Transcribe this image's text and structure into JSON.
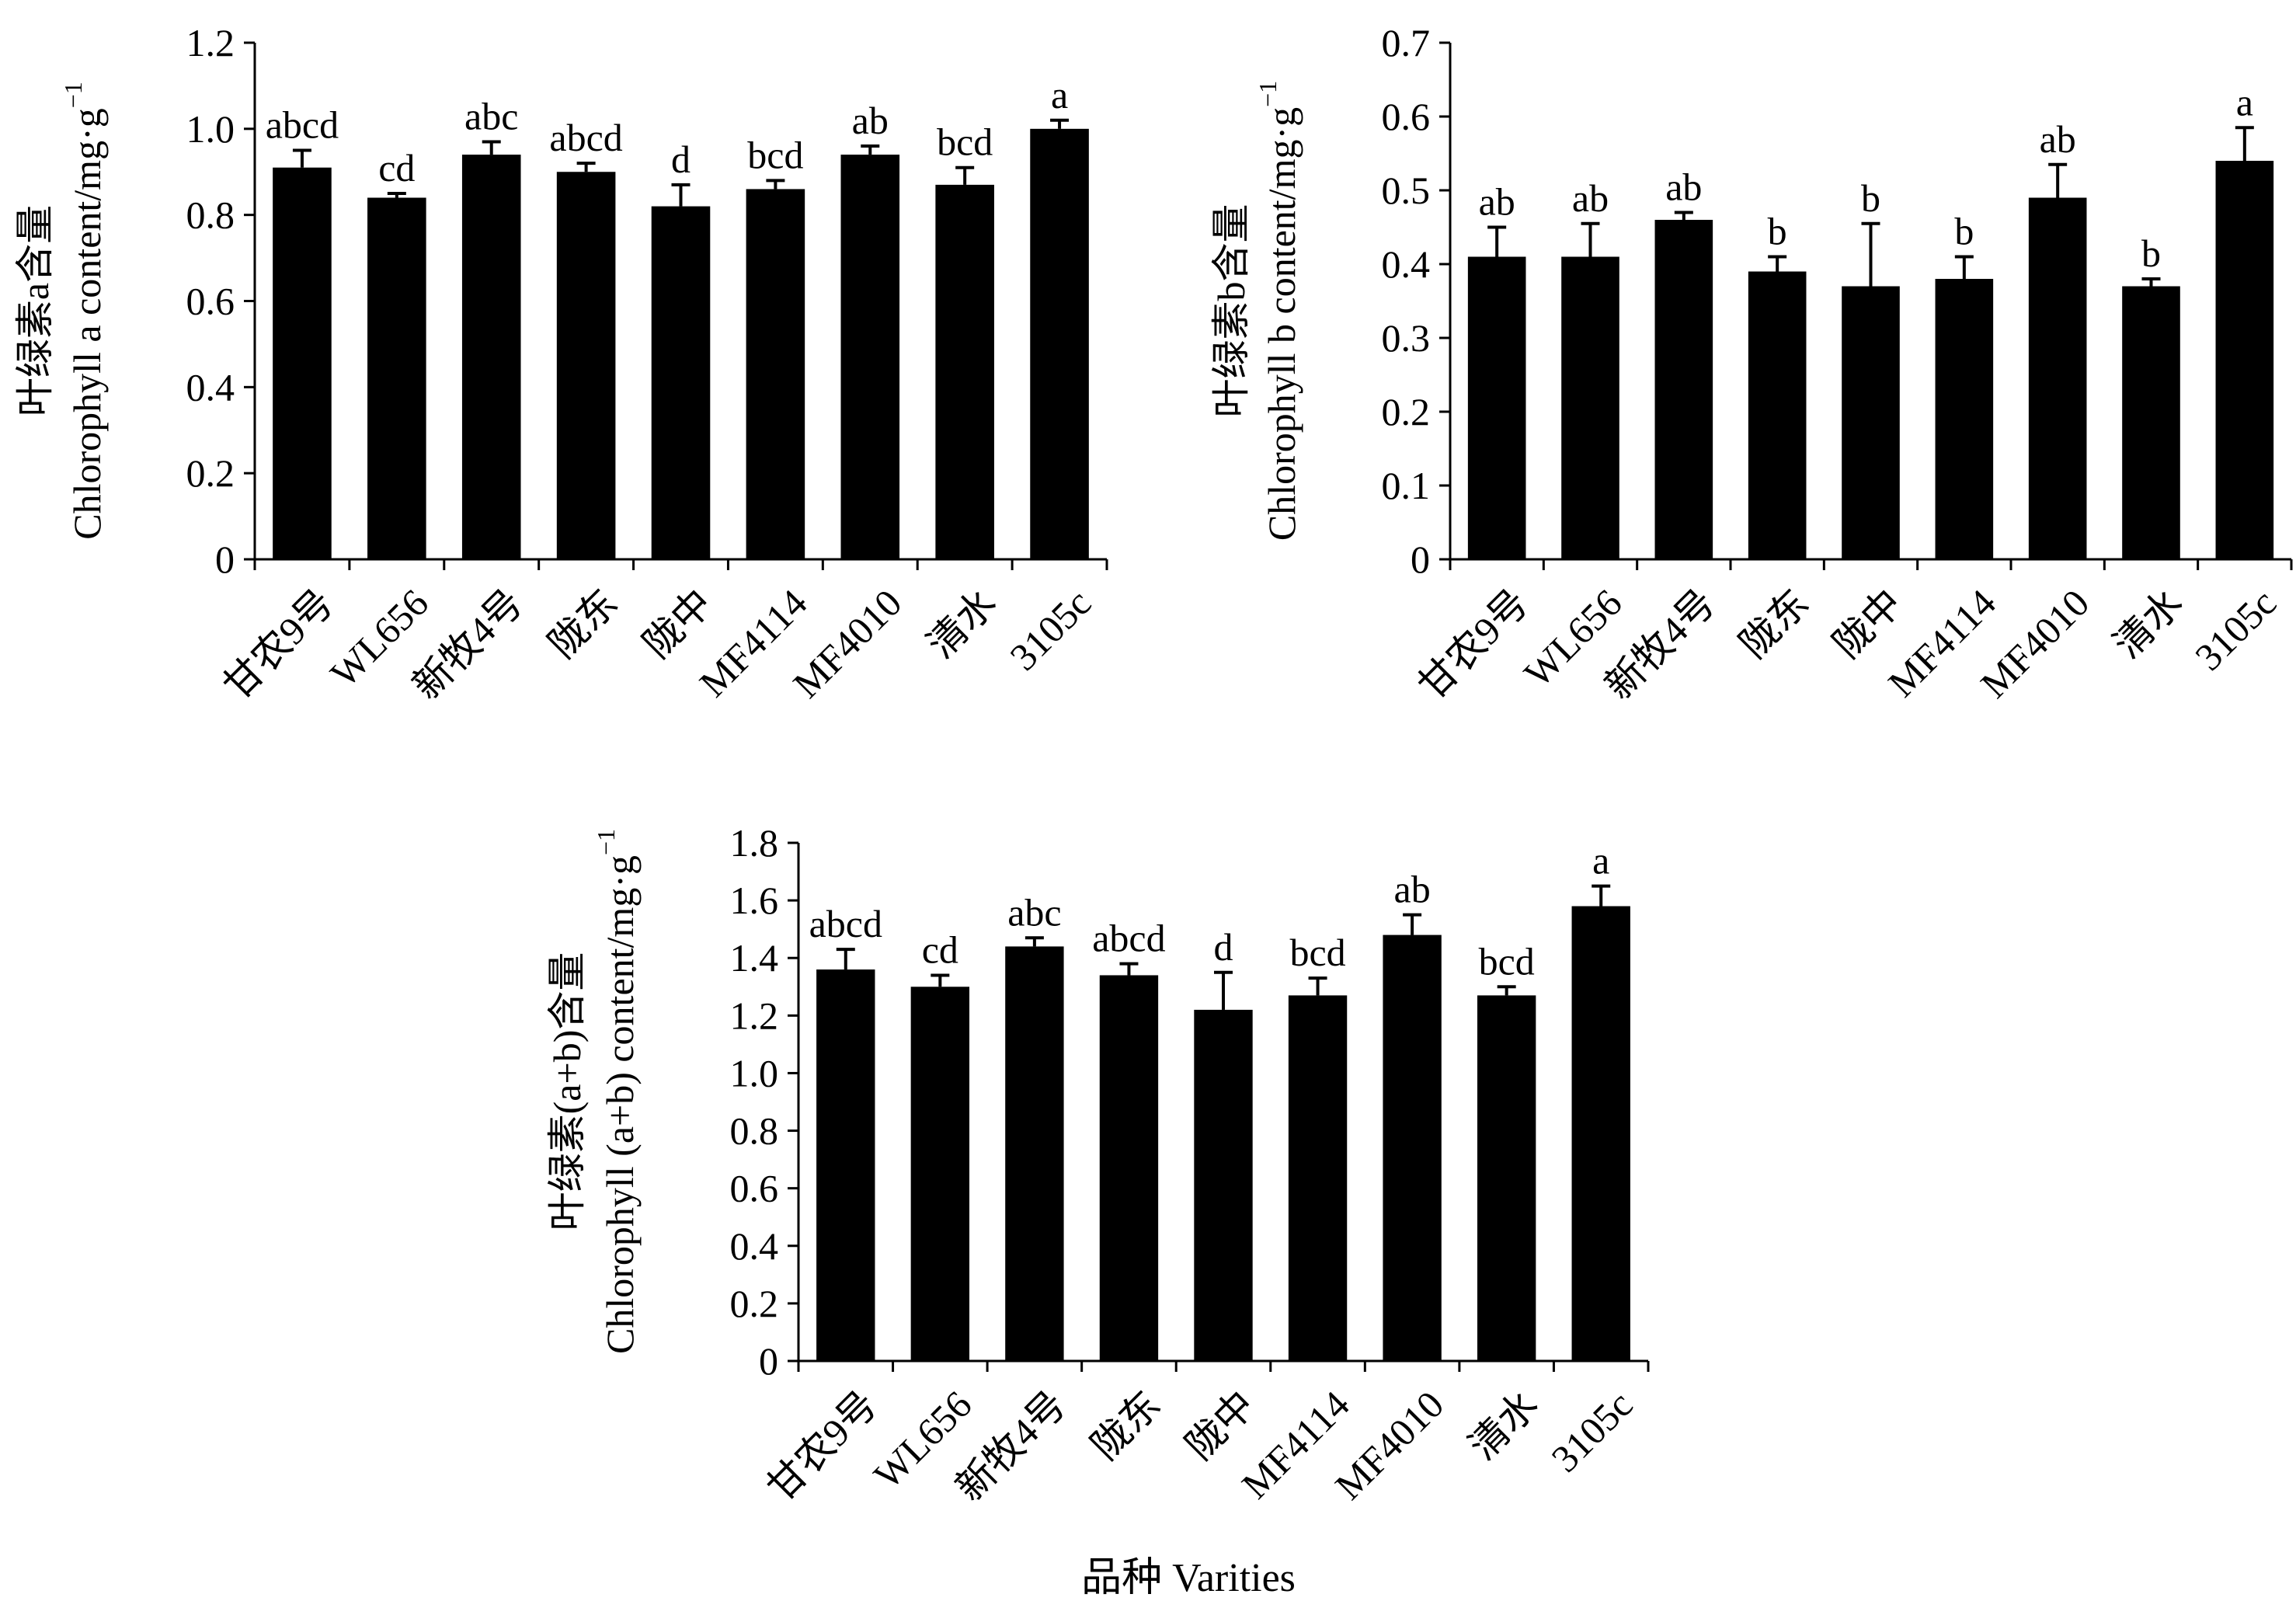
{
  "chart_data": [
    {
      "type": "bar",
      "panel": "top-left",
      "categories": [
        "甘农9号",
        "WL656",
        "新牧4号",
        "陇东",
        "陇中",
        "MF4114",
        "MF4010",
        "清水",
        "3105c"
      ],
      "series": [
        {
          "name": "Chlorophyll a",
          "values": [
            0.91,
            0.84,
            0.94,
            0.9,
            0.82,
            0.86,
            0.94,
            0.87,
            1.0
          ]
        }
      ],
      "errors": [
        0.04,
        0.01,
        0.03,
        0.02,
        0.05,
        0.02,
        0.02,
        0.04,
        0.02
      ],
      "letters": [
        "abcd",
        "cd",
        "abc",
        "abcd",
        "d",
        "bcd",
        "ab",
        "bcd",
        "a"
      ],
      "yticks": [
        "0",
        "0.2",
        "0.4",
        "0.6",
        "0.8",
        "1.0",
        "1.2"
      ],
      "ylim": [
        0,
        1.2
      ],
      "ylabel_cn": "叶绿素a含量",
      "ylabel_en": "Chlorophyll a content/mg·g",
      "ylabel_sup": "−1",
      "xlabel": ""
    },
    {
      "type": "bar",
      "panel": "top-right",
      "categories": [
        "甘农9号",
        "WL656",
        "新牧4号",
        "陇东",
        "陇中",
        "MF4114",
        "MF4010",
        "清水",
        "3105c"
      ],
      "series": [
        {
          "name": "Chlorophyll b",
          "values": [
            0.41,
            0.41,
            0.46,
            0.39,
            0.37,
            0.38,
            0.49,
            0.37,
            0.54
          ]
        }
      ],
      "errors": [
        0.04,
        0.045,
        0.01,
        0.02,
        0.085,
        0.03,
        0.045,
        0.01,
        0.045
      ],
      "letters": [
        "ab",
        "ab",
        "ab",
        "b",
        "b",
        "b",
        "ab",
        "b",
        "a"
      ],
      "yticks": [
        "0",
        "0.1",
        "0.2",
        "0.3",
        "0.4",
        "0.5",
        "0.6",
        "0.7"
      ],
      "ylim": [
        0,
        0.7
      ],
      "ylabel_cn": "叶绿素b含量",
      "ylabel_en": "Chlorophyll b content/mg·g",
      "ylabel_sup": "−1",
      "xlabel": ""
    },
    {
      "type": "bar",
      "panel": "bottom",
      "categories": [
        "甘农9号",
        "WL656",
        "新牧4号",
        "陇东",
        "陇中",
        "MF4114",
        "MF4010",
        "清水",
        "3105c"
      ],
      "series": [
        {
          "name": "Chlorophyll (a+b)",
          "values": [
            1.36,
            1.3,
            1.44,
            1.34,
            1.22,
            1.27,
            1.48,
            1.27,
            1.58
          ]
        }
      ],
      "errors": [
        0.07,
        0.04,
        0.03,
        0.04,
        0.13,
        0.06,
        0.07,
        0.03,
        0.07
      ],
      "letters": [
        "abcd",
        "cd",
        "abc",
        "abcd",
        "d",
        "bcd",
        "ab",
        "bcd",
        "a"
      ],
      "yticks": [
        "0",
        "0.2",
        "0.4",
        "0.6",
        "0.8",
        "1.0",
        "1.2",
        "1.4",
        "1.6",
        "1.8"
      ],
      "ylim": [
        0,
        1.8
      ],
      "ylabel_cn": "叶绿素(a+b)含量",
      "ylabel_en": "Chlorophyll (a+b) content/mg·g",
      "ylabel_sup": "−1",
      "xlabel": "品种 Varities"
    }
  ]
}
